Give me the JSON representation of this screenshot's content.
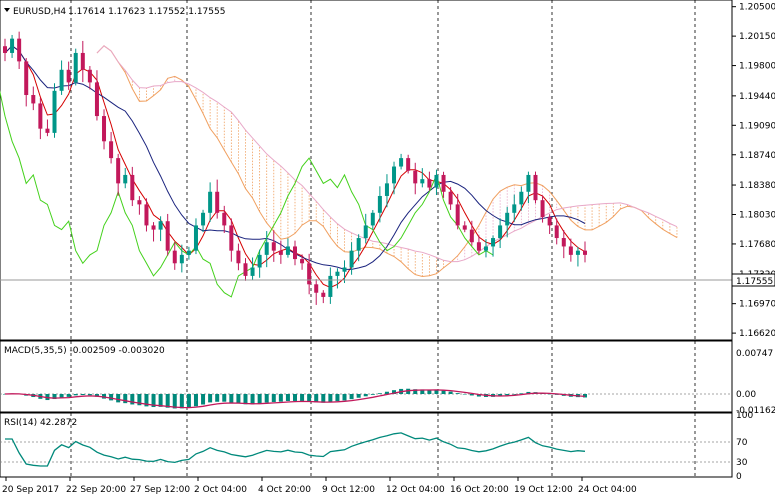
{
  "main": {
    "symbol_label": "EURUSD,H4",
    "ohlc_label": "1.17614 1.17623 1.17552 1.17555",
    "current_price_label": "1.17555",
    "dropdown_icon": "triangle-down-icon"
  },
  "macd": {
    "label": "MACD(5,35,5) -0.002509 -0.003020"
  },
  "rsi": {
    "label": "RSI(14) 42.2872"
  },
  "colors": {
    "bull": "#009688",
    "bear": "#c2185b",
    "tenkan": "#d50000",
    "kijun": "#1a237e",
    "chikou": "#43d11b",
    "cloud_pink": "#e8a8c8",
    "cloud_orange": "#f0a060",
    "macd_hist": "#00897b",
    "macd_signal": "#c2185b",
    "rsi_line": "#00897b"
  },
  "chart_data": [
    {
      "type": "candlestick",
      "title": "EURUSD,H4",
      "y_ticks": [
        "1.20500",
        "1.20150",
        "1.19800",
        "1.19440",
        "1.19090",
        "1.18740",
        "1.18380",
        "1.18030",
        "1.17680",
        "1.17320",
        "1.16970",
        "1.16620"
      ],
      "ylim": [
        1.1655,
        1.2052
      ],
      "x_ticks": [
        "20 Sep 2017",
        "22 Sep 20:00",
        "27 Sep 12:00",
        "2 Oct 04:00",
        "4 Oct 20:00",
        "9 Oct 12:00",
        "12 Oct 04:00",
        "16 Oct 20:00",
        "19 Oct 12:00",
        "24 Oct 04:00"
      ],
      "current_price": 1.17555,
      "grid": "vertical dashed",
      "close_series": [
        1.1995,
        1.2012,
        1.1985,
        1.1945,
        1.1935,
        1.1905,
        1.19,
        1.195,
        1.1975,
        1.196,
        1.1995,
        1.1975,
        1.196,
        1.192,
        1.189,
        1.187,
        1.184,
        1.185,
        1.182,
        1.1815,
        1.179,
        1.1785,
        1.1795,
        1.176,
        1.1745,
        1.1755,
        1.176,
        1.179,
        1.1805,
        1.183,
        1.1805,
        1.179,
        1.176,
        1.1745,
        1.173,
        1.174,
        1.1755,
        1.177,
        1.176,
        1.1755,
        1.1765,
        1.175,
        1.1745,
        1.172,
        1.171,
        1.1705,
        1.173,
        1.1735,
        1.174,
        1.176,
        1.1775,
        1.179,
        1.1805,
        1.1825,
        1.184,
        1.186,
        1.187,
        1.1855,
        1.184,
        1.1845,
        1.1835,
        1.185,
        1.183,
        1.1815,
        1.179,
        1.1785,
        1.177,
        1.176,
        1.1765,
        1.1775,
        1.179,
        1.1805,
        1.1815,
        1.183,
        1.185,
        1.182,
        1.18,
        1.179,
        1.1775,
        1.1765,
        1.1755,
        1.176,
        1.1755
      ]
    },
    {
      "type": "bar",
      "title": "MACD(5,35,5) -0.002509 -0.003020",
      "y_ticks": [
        "0.00747",
        "0.00",
        "-0.011622"
      ],
      "ylim": [
        -0.011622,
        0.00747
      ]
    },
    {
      "type": "line",
      "title": "RSI(14) 42.2872",
      "y_ticks": [
        "100",
        "70",
        "30",
        "0"
      ],
      "ylim": [
        0,
        100
      ],
      "levels": [
        70,
        30
      ]
    }
  ]
}
